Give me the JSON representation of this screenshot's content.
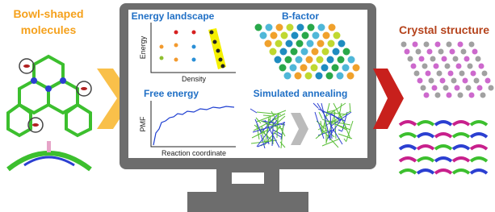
{
  "left": {
    "title": [
      "Bowl-shaped",
      "molecules"
    ]
  },
  "screen": {
    "energy_landscape": {
      "title": "Energy landscape",
      "y_label": "Energy",
      "x_label": "Density"
    },
    "b_factor": {
      "title": "B-factor"
    },
    "free_energy": {
      "title": "Free energy",
      "y_label": "PMF",
      "x_label": "Reaction coordinate"
    },
    "annealing": {
      "title": "Simulated annealing"
    }
  },
  "right": {
    "title": "Crystal structure"
  }
}
